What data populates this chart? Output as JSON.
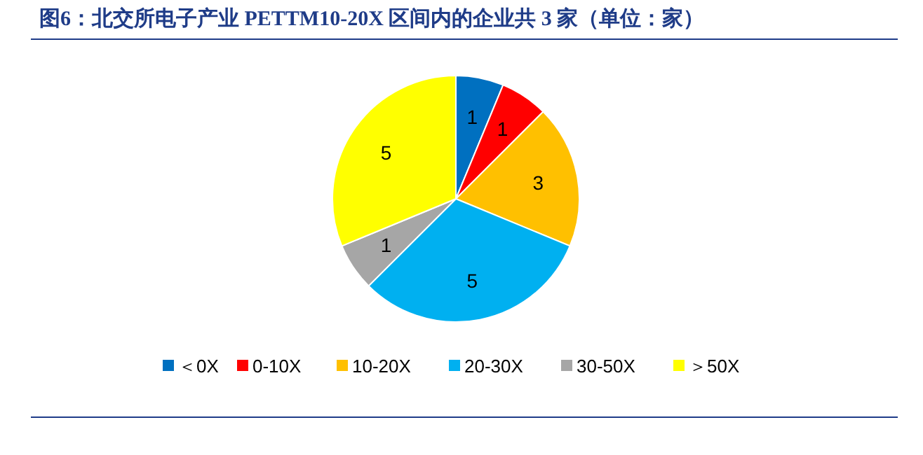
{
  "chart_data": {
    "type": "pie",
    "title": "图6：北交所电子产业 PETTM10-20X 区间内的企业共 3 家（单位：家）",
    "categories": [
      "＜0X",
      "0-10X",
      "10-20X",
      "20-30X",
      "30-50X",
      "＞50X"
    ],
    "values": [
      1,
      1,
      3,
      5,
      1,
      5
    ],
    "colors": [
      "#0070c0",
      "#ff0000",
      "#ffc000",
      "#00b0f0",
      "#a6a6a6",
      "#ffff00"
    ],
    "data_labels": true,
    "legend": "bottom"
  }
}
